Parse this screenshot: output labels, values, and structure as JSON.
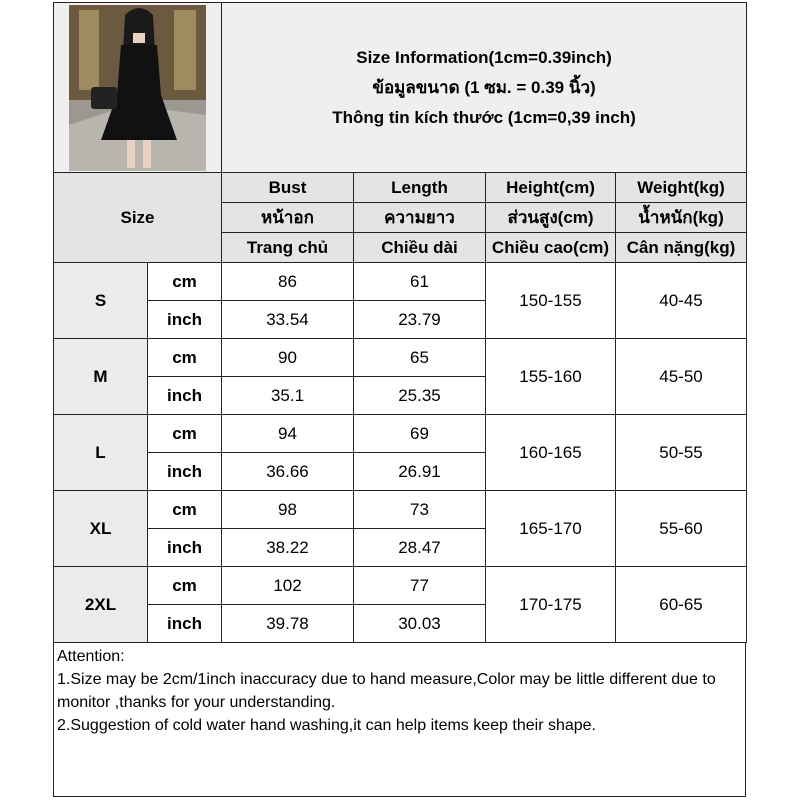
{
  "header": {
    "title_en": "Size Information(1cm=0.39inch)",
    "title_th": "ข้อมูลขนาด (1 ซม. = 0.39 นิ้ว)",
    "title_vi": "Thông tin kích thước (1cm=0,39 inch)"
  },
  "photo": {
    "subject": "woman in black sleeveless pleated mini dress holding black handbag"
  },
  "table": {
    "size_label": "Size",
    "columns": [
      {
        "en": "Bust",
        "th": "หน้าอก",
        "vi": "Trang chủ"
      },
      {
        "en": "Length",
        "th": "ความยาว",
        "vi": "Chiều dài"
      },
      {
        "en": "Height(cm)",
        "th": "ส่วนสูง(cm)",
        "vi": "Chiều cao(cm)"
      },
      {
        "en": "Weight(kg)",
        "th": "น้ำหนัก(kg)",
        "vi": "Cân nặng(kg)"
      }
    ],
    "unit_cm": "cm",
    "unit_inch": "inch",
    "rows": [
      {
        "size": "S",
        "bust_cm": "86",
        "length_cm": "61",
        "bust_inch": "33.54",
        "length_inch": "23.79",
        "height": "150-155",
        "weight": "40-45"
      },
      {
        "size": "M",
        "bust_cm": "90",
        "length_cm": "65",
        "bust_inch": "35.1",
        "length_inch": "25.35",
        "height": "155-160",
        "weight": "45-50"
      },
      {
        "size": "L",
        "bust_cm": "94",
        "length_cm": "69",
        "bust_inch": "36.66",
        "length_inch": "26.91",
        "height": "160-165",
        "weight": "50-55"
      },
      {
        "size": "XL",
        "bust_cm": "98",
        "length_cm": "73",
        "bust_inch": "38.22",
        "length_inch": "28.47",
        "height": "165-170",
        "weight": "55-60"
      },
      {
        "size": "2XL",
        "bust_cm": "102",
        "length_cm": "77",
        "bust_inch": "39.78",
        "length_inch": "30.03",
        "height": "170-175",
        "weight": "60-65"
      }
    ]
  },
  "attention": {
    "heading": "Attention:",
    "line1": "1.Size may be 2cm/1inch inaccuracy due to hand measure,Color may be little different due to monitor ,thanks for your understanding.",
    "line2": "2.Suggestion of cold water hand washing,it can help items keep their shape."
  }
}
